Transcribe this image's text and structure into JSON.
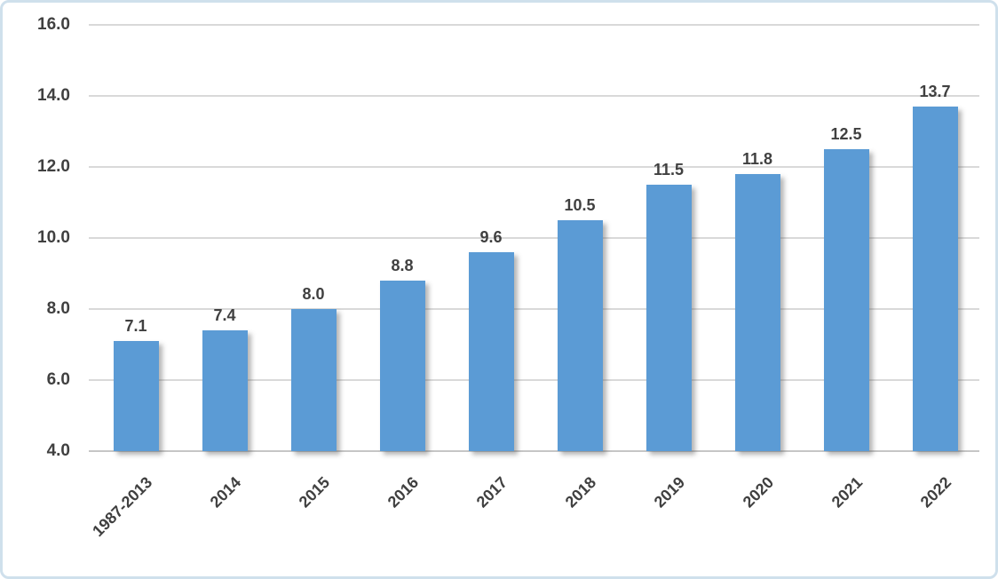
{
  "chart_data": {
    "type": "bar",
    "categories": [
      "1987-2013",
      "2014",
      "2015",
      "2016",
      "2017",
      "2018",
      "2019",
      "2020",
      "2021",
      "2022"
    ],
    "values": [
      7.1,
      7.4,
      8.0,
      8.8,
      9.6,
      10.5,
      11.5,
      11.8,
      12.5,
      13.7
    ],
    "value_labels": [
      "7.1",
      "7.4",
      "8.0",
      "8.8",
      "9.6",
      "10.5",
      "11.5",
      "11.8",
      "12.5",
      "13.7"
    ],
    "ylim": [
      4.0,
      16.0
    ],
    "ytick_step": 2.0,
    "ytick_labels_top_to_bottom": [
      "16.0",
      "14.0",
      "12.0",
      "10.0",
      "8.0",
      "6.0",
      "4.0"
    ],
    "grid": true,
    "legend_position": "none",
    "colors": {
      "bar": "#5b9bd5",
      "text": "#404040",
      "gridline": "#d9d9d9",
      "axis_line": "#c6c6c6",
      "chart_border": "#cfe0ec",
      "background": "#ffffff"
    }
  }
}
